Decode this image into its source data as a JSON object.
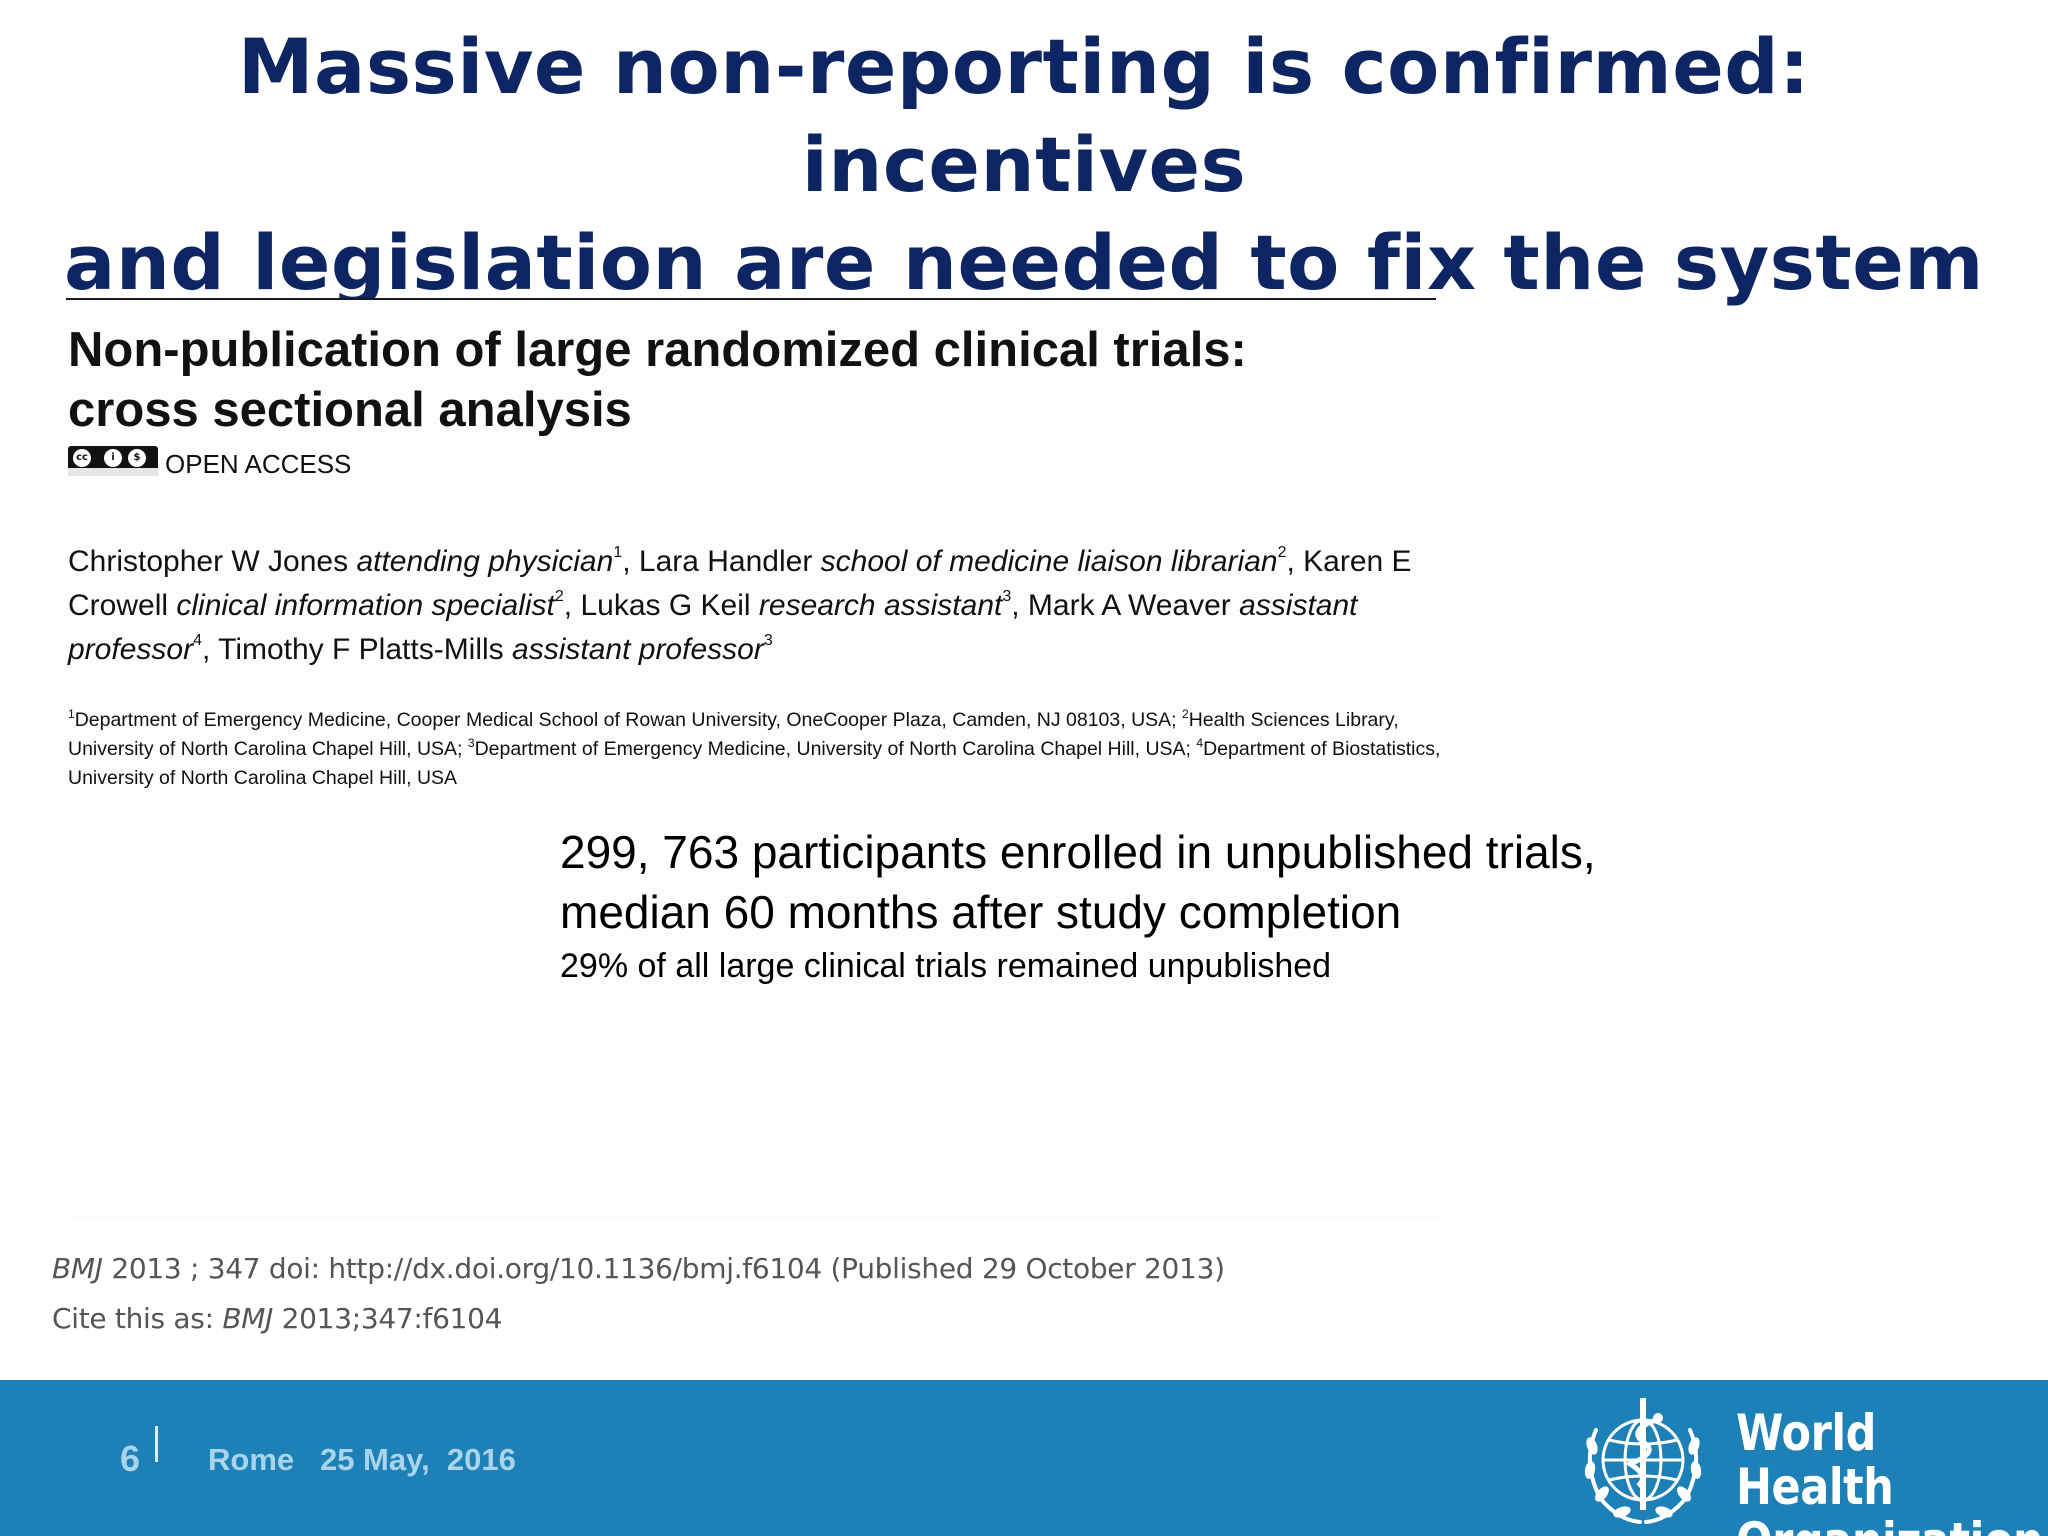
{
  "slide": {
    "title_line1": "Massive non-reporting is confirmed: incentives",
    "title_line2": "and legislation are needed to fix the system"
  },
  "paper": {
    "title_line1": "Non-publication of large randomized clinical trials:",
    "title_line2": "cross sectional analysis",
    "license_label": "OPEN ACCESS",
    "license_icons": [
      "cc-icon",
      "by-icon",
      "nc-icon"
    ],
    "authors": [
      {
        "name": "Christopher W Jones",
        "role": "attending physician",
        "aff": "1"
      },
      {
        "name": "Lara Handler",
        "role": "school of medicine liaison librarian",
        "aff": "2"
      },
      {
        "name": "Karen E Crowell",
        "role": "clinical information specialist",
        "aff": "2"
      },
      {
        "name": "Lukas G Keil",
        "role": "research assistant",
        "aff": "3"
      },
      {
        "name": "Mark A Weaver",
        "role": "assistant professor",
        "aff": "4"
      },
      {
        "name": "Timothy F Platts-Mills",
        "role": "assistant professor",
        "aff": "3"
      }
    ],
    "affiliations": [
      {
        "num": "1",
        "text": "Department of Emergency Medicine, Cooper Medical School of Rowan University, OneCooper Plaza, Camden, NJ 08103, USA;"
      },
      {
        "num": "2",
        "text": "Health Sciences Library, University of North Carolina Chapel Hill, USA;"
      },
      {
        "num": "3",
        "text": "Department of Emergency Medicine, University of North Carolina Chapel Hill, USA;"
      },
      {
        "num": "4",
        "text": "Department of Biostatistics, University of North Carolina Chapel Hill, USA"
      }
    ]
  },
  "highlight": {
    "line1": "299, 763 participants enrolled in unpublished trials,",
    "line2": "median 60 months after study completion",
    "line3": "29% of all large clinical trials remained unpublished"
  },
  "citation": {
    "journal": "BMJ",
    "line1_rest": " 2013 ; 347  doi: http://dx.doi.org/10.1136/bmj.f6104 (Published 29 October 2013)",
    "line2_prefix": "Cite this as: ",
    "line2_journal": "BMJ",
    "line2_rest": " 2013;347:f6104"
  },
  "footer": {
    "page_number": "6",
    "location_date": "Rome   25 May,  2016",
    "org_line1": "World Health",
    "org_line2": "Organization",
    "bar_color": "#1d81b8",
    "title_color": "#0e2563"
  }
}
